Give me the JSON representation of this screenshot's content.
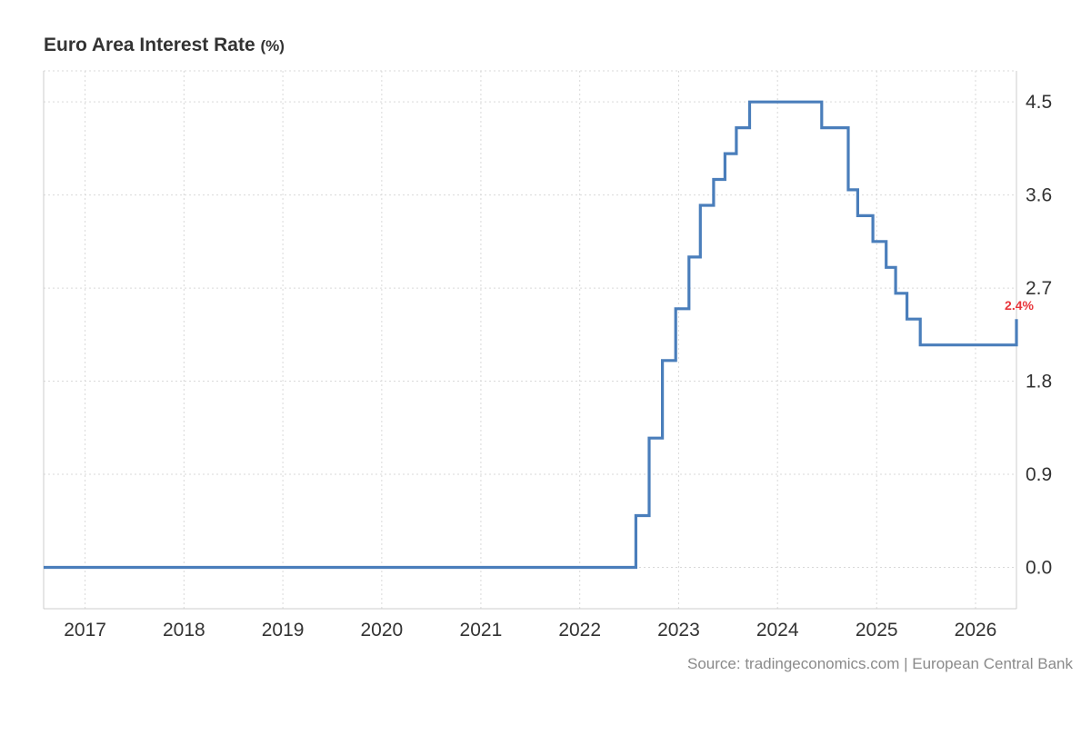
{
  "header": {
    "title": "Euro Area Interest Rate",
    "unit": "(%)"
  },
  "footer": {
    "source": "Source: tradingeconomics.com | European Central Bank"
  },
  "chart_data": {
    "type": "line",
    "step": true,
    "title": "Euro Area Interest Rate",
    "unit": "(%)",
    "x_ticks": [
      "2017",
      "2018",
      "2019",
      "2020",
      "2021",
      "2022",
      "2023",
      "2024",
      "2025",
      "2026"
    ],
    "y_ticks": [
      "0.0",
      "0.9",
      "1.8",
      "2.7",
      "3.6",
      "4.5"
    ],
    "xlim": [
      "2016-08",
      "2026-06"
    ],
    "ylim": [
      -0.4,
      4.8
    ],
    "grid": true,
    "y_axis_side": "right",
    "line_color": "#4a7ebb",
    "last_value_label": "2.4%",
    "last_value_color": "#e8353b",
    "series": [
      {
        "points": [
          [
            "2016-08-01",
            0.0
          ],
          [
            "2022-07-27",
            0.5
          ],
          [
            "2022-09-14",
            1.25
          ],
          [
            "2022-11-02",
            2.0
          ],
          [
            "2022-12-21",
            2.5
          ],
          [
            "2023-02-08",
            3.0
          ],
          [
            "2023-03-22",
            3.5
          ],
          [
            "2023-05-10",
            3.75
          ],
          [
            "2023-06-21",
            4.0
          ],
          [
            "2023-08-02",
            4.25
          ],
          [
            "2023-09-20",
            4.5
          ],
          [
            "2024-06-12",
            4.25
          ],
          [
            "2024-09-18",
            3.65
          ],
          [
            "2024-10-23",
            3.4
          ],
          [
            "2024-12-18",
            3.15
          ],
          [
            "2025-02-05",
            2.9
          ],
          [
            "2025-03-12",
            2.65
          ],
          [
            "2025-04-23",
            2.4
          ],
          [
            "2025-06-11",
            2.15
          ],
          [
            "2026-06-01",
            2.4
          ]
        ]
      }
    ]
  }
}
